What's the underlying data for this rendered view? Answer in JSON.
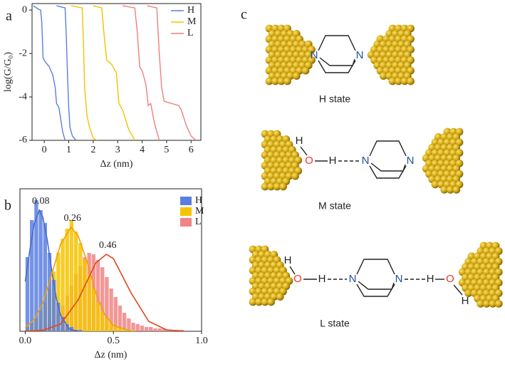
{
  "chart_data": [
    {
      "type": "line",
      "panel_label": "a",
      "xlabel": "Δz (nm)",
      "ylabel": "log(G/G₀)",
      "xlim": [
        -0.5,
        6.4
      ],
      "ylim": [
        -6,
        0.3
      ],
      "xticks": [
        0,
        1,
        2,
        3,
        4,
        5,
        6
      ],
      "yticks": [
        0,
        -2,
        -4,
        -6
      ],
      "legend": "upper right",
      "series": [
        {
          "name": "H",
          "color": "#5b7fd9",
          "traces": [
            {
              "x": [
                -0.45,
                -0.25,
                -0.15,
                -0.1,
                -0.05,
                0.05,
                0.2,
                0.35,
                0.45,
                0.5,
                0.6,
                0.75,
                0.85
              ],
              "values": [
                0.2,
                0.05,
                0,
                -0.6,
                -2.2,
                -2.4,
                -2.6,
                -3.0,
                -3.6,
                -4.3,
                -4.5,
                -5.6,
                -6
              ]
            },
            {
              "x": [
                0.5,
                0.85,
                0.9,
                0.95,
                1.0,
                1.05,
                1.15,
                1.3
              ],
              "values": [
                0.2,
                0.1,
                -1.2,
                -3.0,
                -4.5,
                -5.4,
                -5.8,
                -6
              ]
            }
          ]
        },
        {
          "name": "M",
          "color": "#f2c200",
          "traces": [
            {
              "x": [
                1.1,
                1.55,
                1.6,
                1.65,
                1.75,
                1.85,
                2.0,
                2.15
              ],
              "values": [
                0.2,
                0.1,
                -1.5,
                -3.6,
                -4.9,
                -5.4,
                -5.9,
                -6
              ]
            },
            {
              "x": [
                2.0,
                2.35,
                2.45,
                2.55,
                2.75,
                2.95,
                3.05,
                3.2,
                3.45,
                3.7
              ],
              "values": [
                0.2,
                0.1,
                -1.2,
                -2.3,
                -2.5,
                -2.9,
                -4.3,
                -4.6,
                -5.5,
                -6
              ]
            }
          ]
        },
        {
          "name": "L",
          "color": "#ef7f7f",
          "traces": [
            {
              "x": [
                3.2,
                3.7,
                3.8,
                3.9,
                4.0,
                4.15,
                4.25,
                4.35,
                4.5,
                4.7
              ],
              "values": [
                0.2,
                0.1,
                -1.0,
                -2.6,
                -2.8,
                -3.4,
                -4.4,
                -4.3,
                -5.2,
                -6
              ]
            },
            {
              "x": [
                4.2,
                4.6,
                4.7,
                4.8,
                4.9,
                5.2,
                5.5,
                5.6,
                5.8,
                6.0,
                6.2
              ],
              "values": [
                0.2,
                0.1,
                -2.0,
                -3.6,
                -4.2,
                -4.3,
                -4.4,
                -4.6,
                -5.3,
                -5.8,
                -6
              ]
            }
          ]
        }
      ]
    },
    {
      "type": "histogram",
      "panel_label": "b",
      "xlabel": "Δz (nm)",
      "xlim": [
        -0.03,
        1.0
      ],
      "ylim": [
        0,
        100
      ],
      "xticks": [
        {
          "value": 0,
          "label": "0.0"
        },
        {
          "value": 0.5,
          "label": "0.5"
        },
        {
          "value": 1,
          "label": "1.0"
        }
      ],
      "legend": "upper right",
      "bins": [
        0,
        0.025,
        0.05,
        0.075,
        0.1,
        0.125,
        0.15,
        0.175,
        0.2,
        0.225,
        0.25,
        0.275,
        0.3,
        0.325,
        0.35,
        0.375,
        0.4,
        0.425,
        0.45,
        0.475,
        0.5,
        0.525,
        0.55,
        0.575,
        0.6,
        0.625,
        0.65,
        0.675,
        0.7,
        0.725,
        0.75,
        0.775,
        0.8,
        0.825,
        0.85,
        0.875,
        0.9,
        0.925,
        0.95,
        0.975,
        1.0
      ],
      "series": [
        {
          "name": "H",
          "color": "#5b7fe0",
          "fit_color": "#4a6bc9",
          "peak_label": "0.08",
          "values": [
            52,
            78,
            92,
            85,
            76,
            55,
            36,
            20,
            10,
            5,
            3,
            1,
            1,
            0,
            0,
            0,
            0,
            0,
            0,
            0,
            0,
            0,
            0,
            0,
            0,
            0,
            0,
            0,
            0,
            0,
            0,
            0,
            0,
            0,
            0,
            0,
            0,
            0,
            0,
            0
          ],
          "fit": {
            "x": [
              0,
              0.025,
              0.05,
              0.08,
              0.1,
              0.125,
              0.15,
              0.175,
              0.2,
              0.25,
              0.3
            ],
            "values": [
              35,
              56,
              75,
              85,
              80,
              64,
              43,
              24,
              11.5,
              1.5,
              0.1
            ]
          }
        },
        {
          "name": "M",
          "color": "#f5c400",
          "fit_color": "#f0a000",
          "peak_label": "0.26",
          "values": [
            3,
            6,
            9,
            14,
            20,
            30,
            42,
            55,
            65,
            72,
            78,
            70,
            62,
            50,
            40,
            30,
            20,
            14,
            9,
            6,
            4,
            3,
            2,
            1,
            1,
            0,
            0,
            0,
            0,
            0,
            0,
            0,
            0,
            0,
            0,
            0,
            0,
            0,
            0,
            0
          ],
          "fit": {
            "x": [
              0,
              0.05,
              0.1,
              0.15,
              0.2,
              0.26,
              0.3,
              0.35,
              0.4,
              0.45,
              0.5,
              0.6
            ],
            "values": [
              2.5,
              8,
              20,
              40,
              61,
              73,
              67,
              49,
              27,
              12,
              4,
              0.2
            ]
          }
        },
        {
          "name": "L",
          "color": "#f08585",
          "fit_color": "#e2451c",
          "peak_label": "0.46",
          "values": [
            0,
            1,
            1,
            2,
            3,
            5,
            8,
            12,
            18,
            25,
            32,
            40,
            46,
            52,
            55,
            54,
            50,
            45,
            38,
            30,
            24,
            18,
            13,
            9,
            6,
            5,
            4,
            3,
            3,
            2,
            2,
            2,
            1,
            1,
            1,
            1,
            0,
            0,
            0,
            0
          ],
          "fit": {
            "x": [
              0,
              0.1,
              0.2,
              0.3,
              0.4,
              0.46,
              0.5,
              0.6,
              0.7,
              0.8,
              0.9
            ],
            "values": [
              0.03,
              0.6,
              5,
              22,
              48,
              54,
              51,
              27,
              7,
              1,
              0.07
            ]
          }
        }
      ]
    }
  ],
  "diagram": {
    "panel_label": "c",
    "states": [
      {
        "name": "H state",
        "atoms": [
          "N",
          "N"
        ]
      },
      {
        "name": "M state",
        "atoms": [
          "H",
          "O",
          "H",
          "N",
          "N"
        ]
      },
      {
        "name": "L state",
        "atoms": [
          "H",
          "O",
          "H",
          "N",
          "N",
          "H",
          "O",
          "H"
        ]
      }
    ]
  }
}
